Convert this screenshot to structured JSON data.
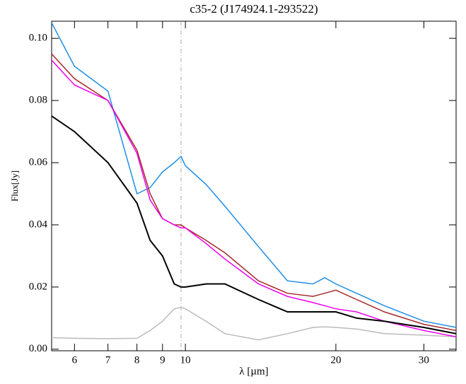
{
  "chart_data": {
    "type": "line",
    "title": "c35-2 (J174924.1-293522)",
    "x_label": "λ [µm]",
    "y_label": "Flux[Jy]",
    "x_scale": "log",
    "x": [
      5.4,
      6,
      7,
      8,
      8.5,
      9,
      9.5,
      9.8,
      10,
      11,
      12,
      14,
      16,
      18,
      19,
      20,
      22,
      25,
      30,
      34.8
    ],
    "series": [
      {
        "color": "#1e8ee8",
        "values": [
          0.105,
          0.091,
          0.083,
          0.05,
          0.052,
          0.057,
          0.06,
          0.062,
          0.059,
          0.053,
          0.046,
          0.033,
          0.022,
          0.021,
          0.023,
          0.021,
          0.018,
          0.014,
          0.009,
          0.007
        ]
      },
      {
        "color": "#a52a2a",
        "values": [
          0.095,
          0.087,
          0.08,
          0.064,
          0.05,
          0.042,
          0.04,
          0.04,
          0.039,
          0.035,
          0.031,
          0.022,
          0.018,
          0.017,
          0.018,
          0.019,
          0.016,
          0.012,
          0.008,
          0.006
        ]
      },
      {
        "color": "#ee00ee",
        "values": [
          0.093,
          0.085,
          0.08,
          0.063,
          0.048,
          0.042,
          0.04,
          0.039,
          0.039,
          0.034,
          0.029,
          0.021,
          0.017,
          0.015,
          0.014,
          0.013,
          0.012,
          0.009,
          0.006,
          0.004
        ]
      },
      {
        "color": "#000000",
        "values": [
          0.075,
          0.07,
          0.06,
          0.047,
          0.035,
          0.03,
          0.021,
          0.02,
          0.02,
          0.021,
          0.021,
          0.016,
          0.012,
          0.012,
          0.012,
          0.012,
          0.01,
          0.009,
          0.007,
          0.005
        ]
      },
      {
        "color": "#bbbbbb",
        "values": [
          0.0037,
          0.0035,
          0.0034,
          0.0035,
          0.006,
          0.009,
          0.013,
          0.0135,
          0.013,
          0.009,
          0.005,
          0.003,
          0.005,
          0.007,
          0.0072,
          0.007,
          0.0065,
          0.005,
          0.0045,
          0.004
        ]
      }
    ],
    "vline": 9.8,
    "xlim": [
      5.4,
      34.8
    ],
    "xticks": [
      6,
      7,
      8,
      9,
      10,
      20,
      30
    ],
    "ylim": [
      -0.0005,
      0.1055
    ],
    "yticks": [
      {
        "value": 0,
        "label": "0.00"
      },
      0.02,
      0.04,
      0.06,
      0.08,
      {
        "value": 0.1,
        "label": "0.10"
      }
    ]
  }
}
